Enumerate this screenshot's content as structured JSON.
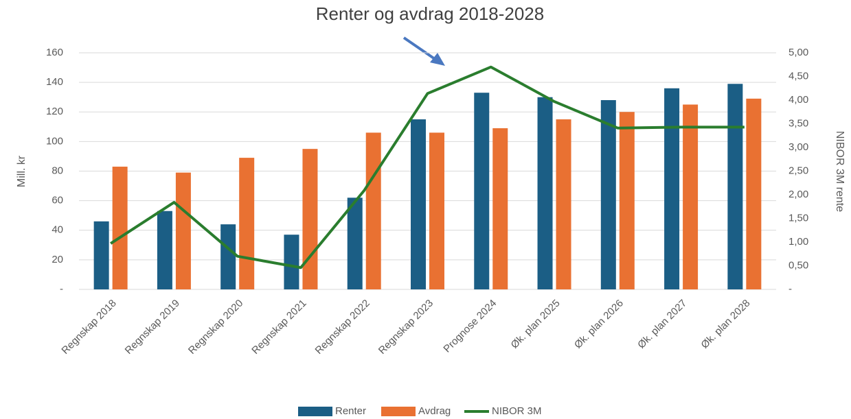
{
  "chart_data": {
    "type": "bar-line",
    "title": "Renter og avdrag 2018-2028",
    "y_label": "Mill. kr",
    "y2_label": "NIBOR 3M rente",
    "categories": [
      "Regnskap 2018",
      "Regnskap 2019",
      "Regnskap 2020",
      "Regnskap 2021",
      "Regnskap 2022",
      "Regnskap 2023",
      "Prognose 2024",
      "Øk. plan 2025",
      "Øk. plan 2026",
      "Øk. plan 2027",
      "Øk. plan 2028"
    ],
    "series": [
      {
        "name": "Renter",
        "type": "bar",
        "color": "#1b5e85",
        "values": [
          46,
          53,
          44,
          37,
          62,
          115,
          133,
          130,
          128,
          136,
          139
        ]
      },
      {
        "name": "Avdrag",
        "type": "bar",
        "color": "#e97132",
        "values": [
          83,
          79,
          89,
          95,
          106,
          106,
          109,
          115,
          120,
          125,
          129
        ]
      },
      {
        "name": "NIBOR 3M",
        "type": "line",
        "axis": "y2",
        "color": "#2a7d2e",
        "values": [
          0.97,
          1.84,
          0.7,
          0.46,
          2.09,
          4.14,
          4.7,
          3.97,
          3.41,
          3.43,
          3.43
        ]
      }
    ],
    "ylim": [
      0,
      160
    ],
    "yticks": [
      {
        "value": 0,
        "label": "-"
      },
      20,
      40,
      60,
      80,
      100,
      120,
      140,
      160
    ],
    "y2lim": [
      0,
      5
    ],
    "y2ticks": [
      {
        "value": 0,
        "label": "-"
      },
      {
        "value": 0.5,
        "label": "0,50"
      },
      {
        "value": 1,
        "label": "1,00"
      },
      {
        "value": 1.5,
        "label": "1,50"
      },
      {
        "value": 2,
        "label": "2,00"
      },
      {
        "value": 2.5,
        "label": "2,50"
      },
      {
        "value": 3,
        "label": "3,00"
      },
      {
        "value": 3.5,
        "label": "3,50"
      },
      {
        "value": 4,
        "label": "4,00"
      },
      {
        "value": 4.5,
        "label": "4,50"
      },
      {
        "value": 5,
        "label": "5,00"
      }
    ],
    "grid": true,
    "legend": "bottom"
  }
}
